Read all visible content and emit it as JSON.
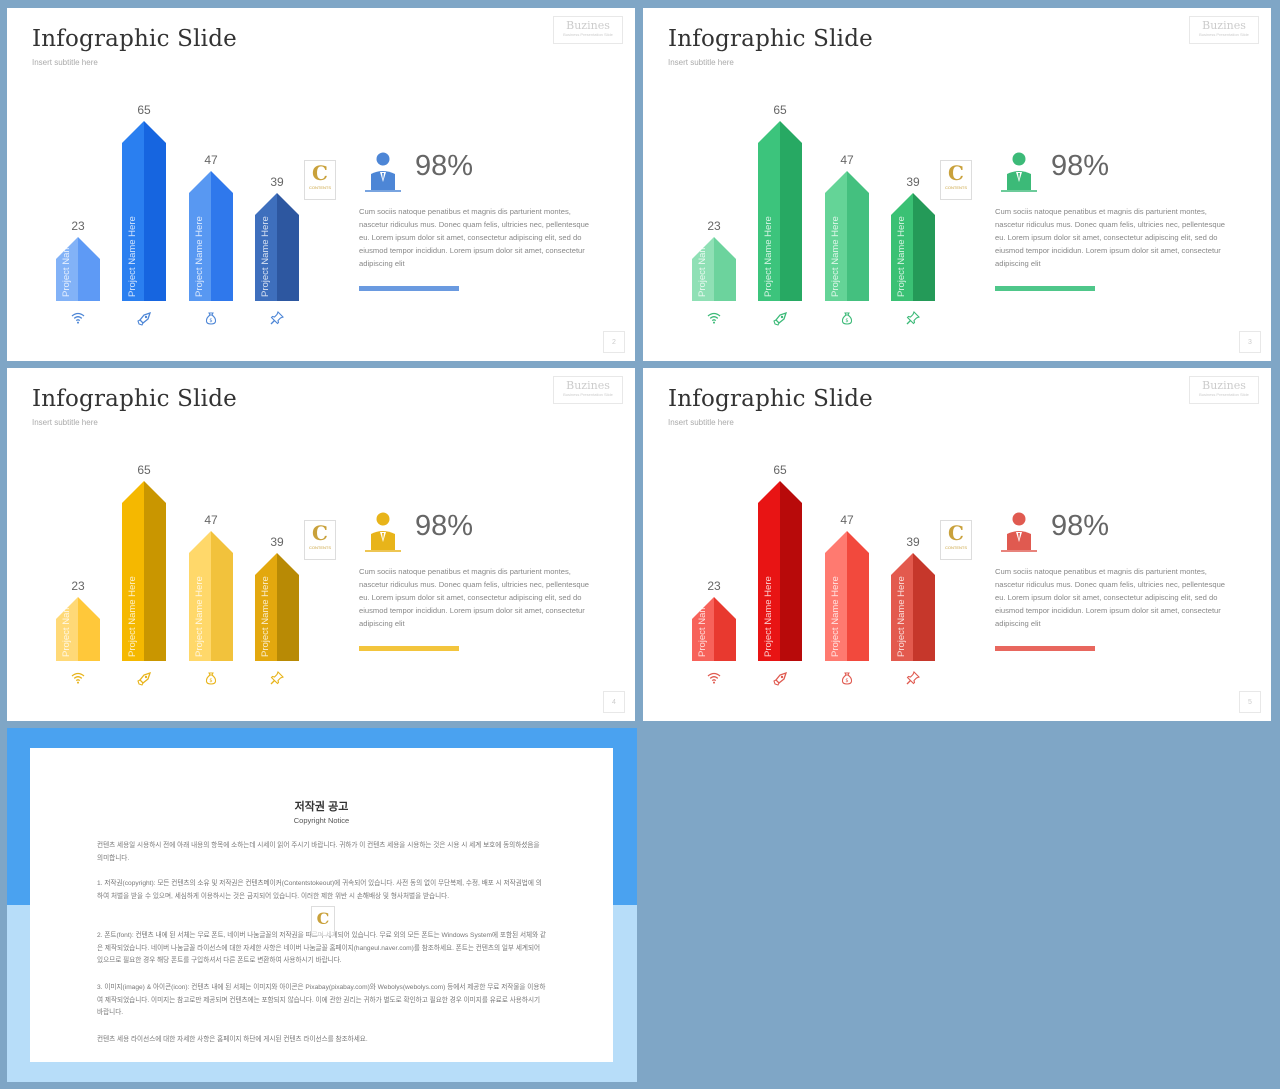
{
  "slides": [
    {
      "title": "Infographic Slide",
      "subtitle": "Insert subtitle here",
      "brand": "Buzines",
      "brand_sub": "Business Presentation Slide",
      "page": "2",
      "bars": [
        {
          "value": "23",
          "label": "Project Name Here",
          "icon": "wifi-icon"
        },
        {
          "value": "65",
          "label": "Project Name Here",
          "icon": "rocket-icon"
        },
        {
          "value": "47",
          "label": "Project Name Here",
          "icon": "money-bag-icon"
        },
        {
          "value": "39",
          "label": "Project Name Here",
          "icon": "pin-icon"
        }
      ],
      "stat_value": "98%",
      "stat_text": "Cum sociis natoque penatibus et magnis dis parturient montes, nascetur ridiculus mus. Donec quam felis, ultricies nec, pellentesque eu. Lorem ipsum dolor sit amet, consectetur adipiscing elit, sed do eiusmod tempor incididun. Lorem ipsum dolor sit amet, consectetur adipiscing elit",
      "logo_letter": "C",
      "logo_text": "CONTENTS",
      "colors": {
        "light": [
          "#82b2f7",
          "#5e9af5"
        ],
        "main": [
          "#2a7ff0",
          "#1665e0"
        ],
        "mid": [
          "#5898f2",
          "#2f78ec"
        ],
        "dark": [
          "#3e6fbd",
          "#2d57a0"
        ],
        "icon": "#4d86d6",
        "line": "#6a9ae0"
      }
    },
    {
      "title": "Infographic Slide",
      "subtitle": "Insert subtitle here",
      "brand": "Buzines",
      "brand_sub": "Business Presentation Slide",
      "page": "3",
      "bars": [
        {
          "value": "23",
          "label": "Project Name Here",
          "icon": "wifi-icon"
        },
        {
          "value": "65",
          "label": "Project Name Here",
          "icon": "rocket-icon"
        },
        {
          "value": "47",
          "label": "Project Name Here",
          "icon": "money-bag-icon"
        },
        {
          "value": "39",
          "label": "Project Name Here",
          "icon": "pin-icon"
        }
      ],
      "stat_value": "98%",
      "stat_text": "Cum sociis natoque penatibus et magnis dis parturient montes, nascetur ridiculus mus. Donec quam felis, ultricies nec, pellentesque eu. Lorem ipsum dolor sit amet, consectetur adipiscing elit, sed do eiusmod tempor incididun. Lorem ipsum dolor sit amet, consectetur adipiscing elit",
      "logo_letter": "C",
      "logo_text": "CONTENTS",
      "colors": {
        "light": [
          "#8fe0b5",
          "#6cd39d"
        ],
        "main": [
          "#3cc47c",
          "#27a963"
        ],
        "mid": [
          "#64d497",
          "#44c07f"
        ],
        "dark": [
          "#3ac174",
          "#249a58"
        ],
        "icon": "#3cba78",
        "line": "#4fc78a"
      }
    },
    {
      "title": "Infographic Slide",
      "subtitle": "Insert subtitle here",
      "brand": "Buzines",
      "brand_sub": "Business Presentation Slide",
      "page": "4",
      "bars": [
        {
          "value": "23",
          "label": "Project Name Here",
          "icon": "wifi-icon"
        },
        {
          "value": "65",
          "label": "Project Name Here",
          "icon": "rocket-icon"
        },
        {
          "value": "47",
          "label": "Project Name Here",
          "icon": "money-bag-icon"
        },
        {
          "value": "39",
          "label": "Project Name Here",
          "icon": "pin-icon"
        }
      ],
      "stat_value": "98%",
      "stat_text": "Cum sociis natoque penatibus et magnis dis parturient montes, nascetur ridiculus mus. Donec quam felis, ultricies nec, pellentesque eu. Lorem ipsum dolor sit amet, consectetur adipiscing elit, sed do eiusmod tempor incididun. Lorem ipsum dolor sit amet, consectetur adipiscing elit",
      "logo_letter": "C",
      "logo_text": "CONTENTS",
      "colors": {
        "light": [
          "#ffd977",
          "#ffc83a"
        ],
        "main": [
          "#f5b800",
          "#c99600"
        ],
        "mid": [
          "#ffd86a",
          "#f2c23c"
        ],
        "dark": [
          "#e3a80e",
          "#b88a05"
        ],
        "icon": "#e8b41a",
        "line": "#f3c53d"
      }
    },
    {
      "title": "Infographic Slide",
      "subtitle": "Insert subtitle here",
      "brand": "Buzines",
      "brand_sub": "Business Presentation Slide",
      "page": "5",
      "bars": [
        {
          "value": "23",
          "label": "Project Name Here",
          "icon": "wifi-icon"
        },
        {
          "value": "65",
          "label": "Project Name Here",
          "icon": "rocket-icon"
        },
        {
          "value": "47",
          "label": "Project Name Here",
          "icon": "money-bag-icon"
        },
        {
          "value": "39",
          "label": "Project Name Here",
          "icon": "pin-icon"
        }
      ],
      "stat_value": "98%",
      "stat_text": "Cum sociis natoque penatibus et magnis dis parturient montes, nascetur ridiculus mus. Donec quam felis, ultricies nec, pellentesque eu. Lorem ipsum dolor sit amet, consectetur adipiscing elit, sed do eiusmod tempor incididun. Lorem ipsum dolor sit amet, consectetur adipiscing elit",
      "logo_letter": "C",
      "logo_text": "CONTENTS",
      "colors": {
        "light": [
          "#f7625a",
          "#e8392f"
        ],
        "main": [
          "#e81414",
          "#b80a0a"
        ],
        "mid": [
          "#ff7a70",
          "#f2493d"
        ],
        "dark": [
          "#e35a4e",
          "#c6372b"
        ],
        "icon": "#e05a50",
        "line": "#e8675e"
      }
    }
  ],
  "notice": {
    "title": "저작권 공고",
    "subtitle": "Copyright Notice",
    "logo_letter": "C",
    "paragraphs": [
      "컨텐츠 세용일 시용하시 전에 아래 내용의 항목에 소하는데 시세이 읽어 주시기 바랍니다. 귀하가 이 컨텐츠 세용을 시용하는 것은 시용 시 세계 보호에 동의하셨음을 의미합니다.",
      "1. 저작권(copyright): 모든 컨텐츠의 소유 및 저작권은 컨텐츠메이커(Contentstokeout)에 귀속되어 있습니다. 사전 동의 없이 무단복제, 수정, 배포 시 저작권법에 의하여 처벌을 받을 수 있으며, 세심하게 이용하시는 것은 금지되어 있습니다. 이러한 제한 위반 시 손해배상 및 형사처벌을 받습니다.",
      "2. 폰트(font): 컨텐츠 내에 된 서체는 무료 폰트, 네이버 나눔글꼴의 저작권을 따르며 세계되어 있습니다. 무료 외의 모든 폰트는 Windows System에 포함된 서체와 같은 제작되었습니다. 네이버 나눔글꼴 라이선스에 대한 자세한 사항은 네이버 나눔글꼴 홈페이지(hangeul.naver.com)를 참조하세요. 폰트는 컨텐츠의 일부 세계되어 있으므로 필요한 경우 해당 폰트를 구입하셔서 다른 폰트로 변환하여 사용하시기 바랍니다.",
      "3. 이미지(image) & 아이콘(icon): 컨텐츠 내에 된 서체는 이미지와 아이콘은 Pixabay(pixabay.com)와 Webolys(webolys.com) 등에서 제공한 무료 저작물을 이용하여 제작되었습니다. 이미지는 참고로만 제공되며 컨텐츠에는 포함되지 않습니다. 이에 관한 권리는 귀하가 별도로 확인하고 필요한 경우 이미지를 유료로 사용하시기 바랍니다.",
      "컨텐츠 세용 라이선스에 대한 자세한 사항은 홈페이지 하단에 게시된 컨텐츠 라이선스를 참조하세요."
    ]
  }
}
